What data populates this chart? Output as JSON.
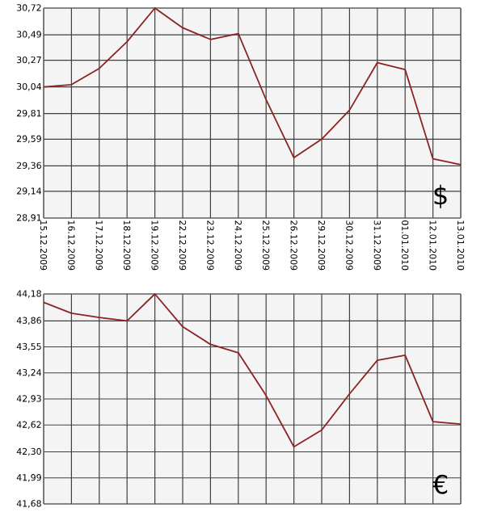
{
  "chart_data": [
    {
      "type": "line",
      "categories": [
        "15.12.2009",
        "16.12.2009",
        "17.12.2009",
        "18.12.2009",
        "19.12.2009",
        "22.12.2009",
        "23.12.2009",
        "24.12.2009",
        "25.12.2009",
        "26.12.2009",
        "29.12.2009",
        "30.12.2009",
        "31.12.2009",
        "01.01.2010",
        "12.01.2010",
        "13.01.2010"
      ],
      "series": [
        {
          "color": "#8b2323",
          "values": [
            30.04,
            30.06,
            30.2,
            30.43,
            30.72,
            30.55,
            30.45,
            30.5,
            29.93,
            29.43,
            29.59,
            29.84,
            30.25,
            30.19,
            29.42,
            29.37
          ]
        }
      ],
      "ylim": [
        28.91,
        30.72
      ],
      "yticks": [
        {
          "value": 28.91,
          "label": "28,91"
        },
        {
          "value": 29.14,
          "label": "29,14"
        },
        {
          "value": 29.36,
          "label": "29,36"
        },
        {
          "value": 29.59,
          "label": "29,59"
        },
        {
          "value": 29.81,
          "label": "29,81"
        },
        {
          "value": 30.04,
          "label": "30,04"
        },
        {
          "value": 30.27,
          "label": "30,27"
        },
        {
          "value": 30.49,
          "label": "30,49"
        },
        {
          "value": 30.72,
          "label": "30,72"
        }
      ],
      "grid": true,
      "annotations": [
        "$"
      ]
    },
    {
      "type": "line",
      "categories": [
        "15.12.2009",
        "16.12.2009",
        "17.12.2009",
        "18.12.2009",
        "19.12.2009",
        "22.12.2009",
        "23.12.2009",
        "24.12.2009",
        "25.12.2009",
        "26.12.2009",
        "29.12.2009",
        "30.12.2009",
        "31.12.2009",
        "01.01.2010",
        "12.01.2010",
        "13.01.2010"
      ],
      "series": [
        {
          "color": "#8b2323",
          "values": [
            44.08,
            43.95,
            43.9,
            43.86,
            44.18,
            43.79,
            43.58,
            43.48,
            42.97,
            42.36,
            42.56,
            42.99,
            43.39,
            43.45,
            42.66,
            42.63
          ]
        }
      ],
      "ylim": [
        41.68,
        44.18
      ],
      "yticks": [
        {
          "value": 41.68,
          "label": "41,68"
        },
        {
          "value": 41.99,
          "label": "41,99"
        },
        {
          "value": 42.3,
          "label": "42,30"
        },
        {
          "value": 42.62,
          "label": "42,62"
        },
        {
          "value": 42.93,
          "label": "42,93"
        },
        {
          "value": 43.24,
          "label": "43,24"
        },
        {
          "value": 43.55,
          "label": "43,55"
        },
        {
          "value": 43.86,
          "label": "43,86"
        },
        {
          "value": 44.18,
          "label": "44,18"
        }
      ],
      "grid": true,
      "tick_labels": "y",
      "annotations": [
        "€"
      ]
    }
  ]
}
